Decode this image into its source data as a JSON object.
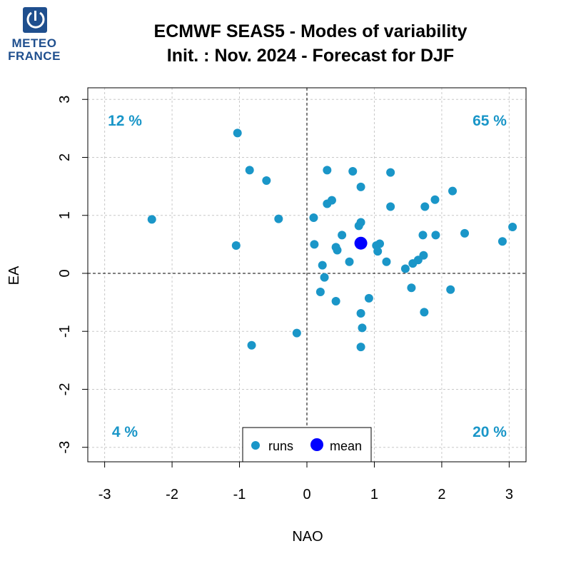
{
  "logo": {
    "line1": "METEO",
    "line2": "FRANCE",
    "color": "#1f4f8e"
  },
  "title": {
    "line1": "ECMWF SEAS5 - Modes of variability",
    "line2": "Init. : Nov. 2024 - Forecast for DJF"
  },
  "chart_data": {
    "type": "scatter",
    "xlabel": "NAO",
    "ylabel": "EA",
    "xlim": [
      -3.25,
      3.25
    ],
    "ylim": [
      -3.25,
      3.2
    ],
    "xticks": [
      -3,
      -2,
      -1,
      0,
      1,
      2,
      3
    ],
    "yticks": [
      -3,
      -2,
      -1,
      0,
      1,
      2,
      3
    ],
    "grid": true,
    "quadrant_percentages": {
      "top_left": "12 %",
      "top_right": "65 %",
      "bottom_left": "4 %",
      "bottom_right": "20 %"
    },
    "legend": {
      "position": "bottom-center",
      "entries": [
        "runs",
        "mean"
      ]
    },
    "colors": {
      "runs": "#1a96c8",
      "mean": "#0000ff",
      "percent_text": "#1a96c8"
    },
    "series": [
      {
        "name": "runs",
        "points": [
          [
            -2.3,
            0.93
          ],
          [
            -1.03,
            2.42
          ],
          [
            -0.85,
            1.78
          ],
          [
            -0.6,
            1.6
          ],
          [
            -1.05,
            0.48
          ],
          [
            -0.42,
            0.94
          ],
          [
            -0.82,
            -1.24
          ],
          [
            -0.15,
            -1.03
          ],
          [
            0.1,
            0.96
          ],
          [
            0.11,
            0.5
          ],
          [
            0.23,
            0.14
          ],
          [
            0.26,
            -0.07
          ],
          [
            0.2,
            -0.32
          ],
          [
            0.3,
            1.78
          ],
          [
            0.3,
            1.2
          ],
          [
            0.37,
            1.26
          ],
          [
            0.43,
            0.45
          ],
          [
            0.45,
            0.4
          ],
          [
            0.43,
            -0.48
          ],
          [
            0.52,
            0.66
          ],
          [
            0.63,
            0.2
          ],
          [
            0.68,
            1.76
          ],
          [
            0.8,
            1.49
          ],
          [
            0.8,
            0.88
          ],
          [
            0.77,
            0.82
          ],
          [
            0.92,
            -0.43
          ],
          [
            0.8,
            -0.69
          ],
          [
            0.82,
            -0.94
          ],
          [
            0.8,
            -1.27
          ],
          [
            1.03,
            0.48
          ],
          [
            1.05,
            0.38
          ],
          [
            1.08,
            0.51
          ],
          [
            1.18,
            0.2
          ],
          [
            1.24,
            1.74
          ],
          [
            1.24,
            1.15
          ],
          [
            1.46,
            0.08
          ],
          [
            1.55,
            -0.25
          ],
          [
            1.57,
            0.17
          ],
          [
            1.65,
            0.23
          ],
          [
            1.72,
            0.66
          ],
          [
            1.73,
            0.31
          ],
          [
            1.74,
            -0.67
          ],
          [
            1.75,
            1.15
          ],
          [
            1.9,
            1.27
          ],
          [
            1.91,
            0.66
          ],
          [
            2.13,
            -0.28
          ],
          [
            2.16,
            1.42
          ],
          [
            2.34,
            0.69
          ],
          [
            2.9,
            0.55
          ],
          [
            3.05,
            0.8
          ]
        ]
      },
      {
        "name": "mean",
        "points": [
          [
            0.8,
            0.52
          ]
        ]
      }
    ]
  }
}
